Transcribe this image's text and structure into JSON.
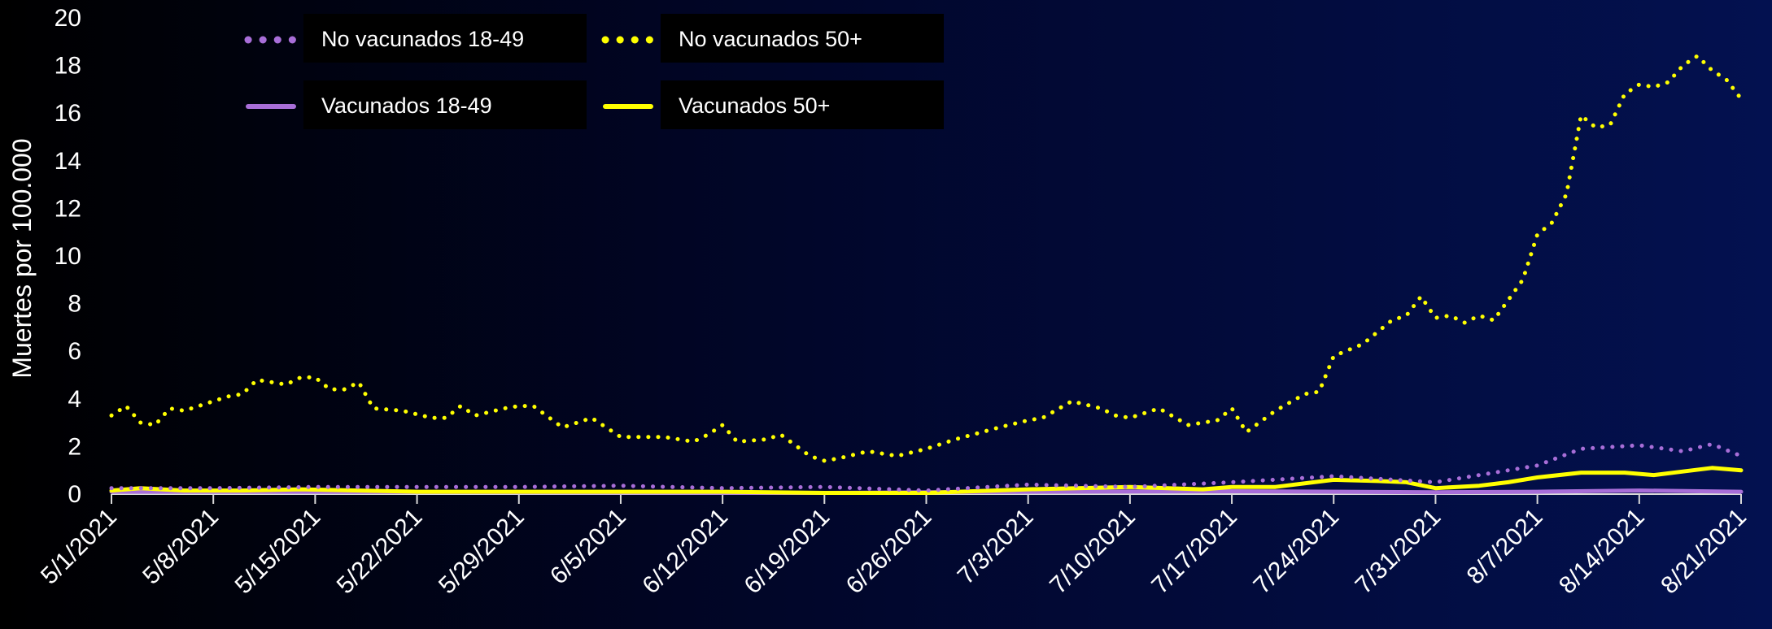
{
  "chart_data": {
    "type": "line",
    "ylabel": "Muertes por 100.000",
    "ylim": [
      0,
      20
    ],
    "yticks": [
      "0",
      "2",
      "4",
      "6",
      "8",
      "10",
      "12",
      "14",
      "16",
      "18",
      "20"
    ],
    "xlabel": "",
    "x_tick_labels": [
      "5/1/2021",
      "5/8/2021",
      "5/15/2021",
      "5/22/2021",
      "5/29/2021",
      "6/5/2021",
      "6/12/2021",
      "6/19/2021",
      "6/26/2021",
      "7/3/2021",
      "7/10/2021",
      "7/17/2021",
      "7/24/2021",
      "7/31/2021",
      "8/7/2021",
      "8/14/2021",
      "8/21/2021"
    ],
    "x_start": "5/1/2021",
    "x_end": "8/21/2021",
    "legend_placement": "top-left",
    "grid": false,
    "series": [
      {
        "name": "No vacunados 18-49",
        "color": "#a86ed8",
        "style": "dotted",
        "x": [
          "5/1/2021",
          "5/8/2021",
          "5/15/2021",
          "5/22/2021",
          "5/29/2021",
          "6/5/2021",
          "6/12/2021",
          "6/19/2021",
          "6/26/2021",
          "7/3/2021",
          "7/10/2021",
          "7/17/2021",
          "7/24/2021",
          "7/31/2021",
          "8/3/2021",
          "8/7/2021",
          "8/10/2021",
          "8/14/2021",
          "8/17/2021",
          "8/19/2021",
          "8/21/2021"
        ],
        "values": [
          0.25,
          0.25,
          0.3,
          0.3,
          0.3,
          0.35,
          0.25,
          0.3,
          0.15,
          0.4,
          0.3,
          0.5,
          0.75,
          0.5,
          0.8,
          1.2,
          1.9,
          2.05,
          1.8,
          2.1,
          1.6
        ]
      },
      {
        "name": "No vacunados 50+",
        "color": "#ffff00",
        "style": "dotted",
        "x": [
          "5/1/2021",
          "5/2/2021",
          "5/3/2021",
          "5/4/2021",
          "5/5/2021",
          "5/6/2021",
          "5/8/2021",
          "5/9/2021",
          "5/10/2021",
          "5/11/2021",
          "5/13/2021",
          "5/14/2021",
          "5/15/2021",
          "5/16/2021",
          "5/17/2021",
          "5/18/2021",
          "5/19/2021",
          "5/21/2021",
          "5/23/2021",
          "5/24/2021",
          "5/25/2021",
          "5/26/2021",
          "5/28/2021",
          "5/29/2021",
          "5/30/2021",
          "6/1/2021",
          "6/3/2021",
          "6/5/2021",
          "6/8/2021",
          "6/10/2021",
          "6/11/2021",
          "6/12/2021",
          "6/13/2021",
          "6/15/2021",
          "6/16/2021",
          "6/18/2021",
          "6/19/2021",
          "6/20/2021",
          "6/22/2021",
          "6/24/2021",
          "6/26/2021",
          "6/28/2021",
          "7/1/2021",
          "7/3/2021",
          "7/4/2021",
          "7/6/2021",
          "7/8/2021",
          "7/9/2021",
          "7/10/2021",
          "7/12/2021",
          "7/14/2021",
          "7/16/2021",
          "7/17/2021",
          "7/18/2021",
          "7/20/2021",
          "7/22/2021",
          "7/23/2021",
          "7/24/2021",
          "7/26/2021",
          "7/28/2021",
          "7/29/2021",
          "7/30/2021",
          "7/31/2021",
          "8/1/2021",
          "8/2/2021",
          "8/3/2021",
          "8/4/2021",
          "8/6/2021",
          "8/7/2021",
          "8/8/2021",
          "8/9/2021",
          "8/10/2021",
          "8/11/2021",
          "8/12/2021",
          "8/13/2021",
          "8/14/2021",
          "8/15/2021",
          "8/16/2021",
          "8/17/2021",
          "8/18/2021",
          "8/19/2021",
          "8/20/2021",
          "8/21/2021"
        ],
        "values": [
          3.3,
          3.7,
          3.0,
          2.9,
          3.6,
          3.5,
          3.9,
          4.1,
          4.2,
          4.8,
          4.6,
          4.9,
          4.9,
          4.4,
          4.4,
          4.7,
          3.6,
          3.5,
          3.2,
          3.2,
          3.7,
          3.3,
          3.6,
          3.7,
          3.7,
          2.8,
          3.2,
          2.4,
          2.4,
          2.2,
          2.5,
          2.9,
          2.2,
          2.3,
          2.5,
          1.6,
          1.4,
          1.5,
          1.8,
          1.6,
          1.9,
          2.3,
          2.8,
          3.1,
          3.2,
          3.9,
          3.6,
          3.3,
          3.2,
          3.6,
          2.9,
          3.1,
          3.6,
          2.6,
          3.5,
          4.2,
          4.3,
          5.8,
          6.3,
          7.3,
          7.5,
          8.3,
          7.4,
          7.5,
          7.2,
          7.5,
          7.3,
          9.0,
          10.9,
          11.4,
          12.6,
          15.9,
          15.4,
          15.5,
          16.8,
          17.2,
          17.1,
          17.3,
          18.0,
          18.4,
          17.8,
          17.4,
          16.6
        ]
      },
      {
        "name": "Vacunados 18-49",
        "color": "#a86ed8",
        "style": "solid",
        "x": [
          "5/1/2021",
          "5/15/2021",
          "6/1/2021",
          "6/19/2021",
          "7/3/2021",
          "7/17/2021",
          "7/31/2021",
          "8/7/2021",
          "8/14/2021",
          "8/21/2021"
        ],
        "values": [
          0.1,
          0.1,
          0.08,
          0.05,
          0.1,
          0.12,
          0.08,
          0.1,
          0.15,
          0.1
        ]
      },
      {
        "name": "Vacunados 50+",
        "color": "#ffff00",
        "style": "solid",
        "x": [
          "5/1/2021",
          "5/3/2021",
          "5/6/2021",
          "5/10/2021",
          "5/14/2021",
          "5/18/2021",
          "5/22/2021",
          "5/29/2021",
          "6/5/2021",
          "6/12/2021",
          "6/19/2021",
          "6/26/2021",
          "7/3/2021",
          "7/10/2021",
          "7/15/2021",
          "7/17/2021",
          "7/20/2021",
          "7/24/2021",
          "7/27/2021",
          "7/29/2021",
          "7/31/2021",
          "8/3/2021",
          "8/5/2021",
          "8/7/2021",
          "8/10/2021",
          "8/13/2021",
          "8/15/2021",
          "8/17/2021",
          "8/19/2021",
          "8/21/2021"
        ],
        "values": [
          0.15,
          0.25,
          0.15,
          0.15,
          0.2,
          0.15,
          0.1,
          0.1,
          0.1,
          0.1,
          0.05,
          0.05,
          0.2,
          0.3,
          0.2,
          0.3,
          0.3,
          0.6,
          0.55,
          0.5,
          0.25,
          0.35,
          0.5,
          0.7,
          0.9,
          0.9,
          0.8,
          0.95,
          1.1,
          1.0
        ]
      }
    ]
  }
}
